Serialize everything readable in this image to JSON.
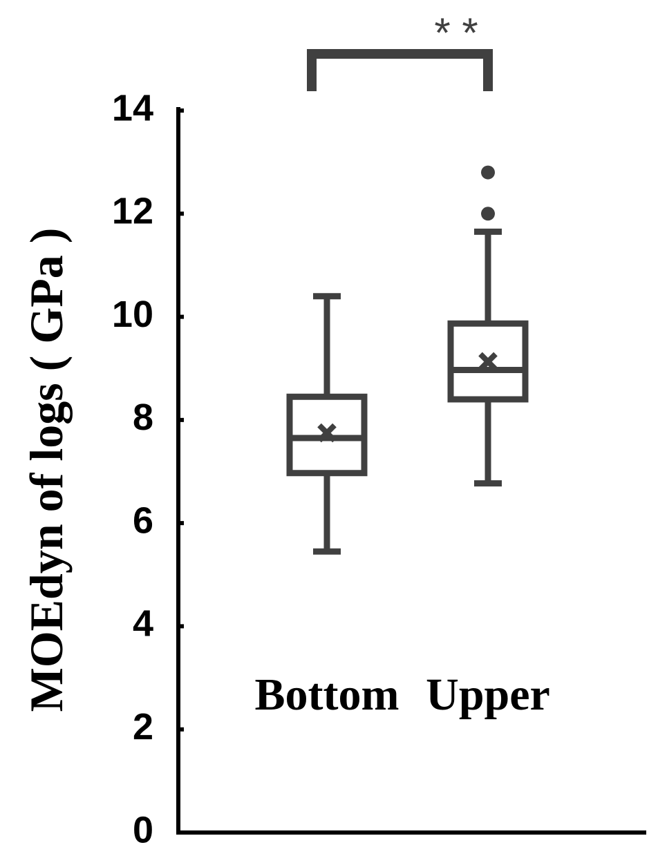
{
  "chart_data": {
    "type": "box",
    "y_label": "MOEdyn of logs ( GPa )",
    "annotation": "* *",
    "categories": [
      "Bottom",
      "Upper"
    ],
    "color": "#404040",
    "boxes": [
      {
        "whisker_low": 5.45,
        "q1": 6.97,
        "median": 7.65,
        "q3": 8.45,
        "whisker_high": 10.4,
        "mean": 7.75,
        "outliers": []
      },
      {
        "whisker_low": 6.77,
        "q1": 8.4,
        "median": 8.97,
        "q3": 9.87,
        "whisker_high": 11.65,
        "mean": 9.13,
        "outliers": [
          12.0,
          12.8
        ]
      }
    ],
    "ylim": [
      0,
      14
    ],
    "yticks": [
      0,
      2,
      4,
      6,
      8,
      10,
      12,
      14
    ]
  }
}
